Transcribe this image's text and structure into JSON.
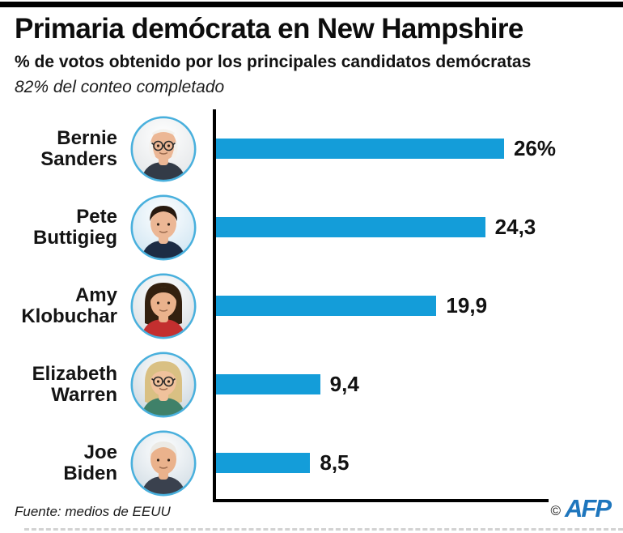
{
  "header": {
    "title": "Primaria demócrata en New Hampshire",
    "subtitle": "% de votos obtenido por los principales candidatos demócratas",
    "note": "82% del conteo completado"
  },
  "chart_data": {
    "type": "bar",
    "orientation": "horizontal",
    "title": "Primaria demócrata en New Hampshire",
    "subtitle": "% de votos obtenido por los principales candidatos demócratas",
    "annotation": "82% del conteo completado",
    "categories": [
      "Bernie Sanders",
      "Pete Buttigieg",
      "Amy Klobuchar",
      "Elizabeth Warren",
      "Joe Biden"
    ],
    "values": [
      26,
      24.3,
      19.9,
      9.4,
      8.5
    ],
    "value_labels": [
      "26%",
      "24,3",
      "19,9",
      "9,4",
      "8,5"
    ],
    "xlabel": "",
    "ylabel": "",
    "xlim": [
      0,
      30
    ],
    "grid": false,
    "legend": false,
    "bar_color": "#149dd9",
    "axis_color": "#000000"
  },
  "candidates": [
    {
      "name_lines": [
        "Bernie",
        "Sanders"
      ],
      "avatar": {
        "bg": "#e3e6e8",
        "skin": "#ecb795",
        "hair": "#f3f1ed",
        "hair_style": "balding",
        "top": "#333b47",
        "glasses": true
      }
    },
    {
      "name_lines": [
        "Pete",
        "Buttigieg"
      ],
      "avatar": {
        "bg": "#cfe5f2",
        "skin": "#ecb795",
        "hair": "#27190f",
        "hair_style": "short",
        "top": "#1d2c44",
        "glasses": false
      }
    },
    {
      "name_lines": [
        "Amy",
        "Klobuchar"
      ],
      "avatar": {
        "bg": "#dadfe3",
        "skin": "#eab28c",
        "hair": "#33200f",
        "hair_style": "bob",
        "top": "#c32f2f",
        "glasses": false
      }
    },
    {
      "name_lines": [
        "Elizabeth",
        "Warren"
      ],
      "avatar": {
        "bg": "#ccd7df",
        "skin": "#f0c29c",
        "hair": "#d9c083",
        "hair_style": "bob",
        "top": "#3f8169",
        "glasses": true
      }
    },
    {
      "name_lines": [
        "Joe",
        "Biden"
      ],
      "avatar": {
        "bg": "#d2dde5",
        "skin": "#eab28c",
        "hair": "#eceae5",
        "hair_style": "short",
        "top": "#3a414e",
        "glasses": false
      }
    }
  ],
  "footer": {
    "source": "Fuente: medios de EEUU",
    "copyright_symbol": "©",
    "credit": "AFP"
  },
  "colors": {
    "bar": "#149dd9",
    "avatar_ring": "#49b0dd",
    "afp_blue": "#1e76bd",
    "axis": "#000000",
    "top_bar": "#000000",
    "dashed": "#d2d2d2"
  }
}
